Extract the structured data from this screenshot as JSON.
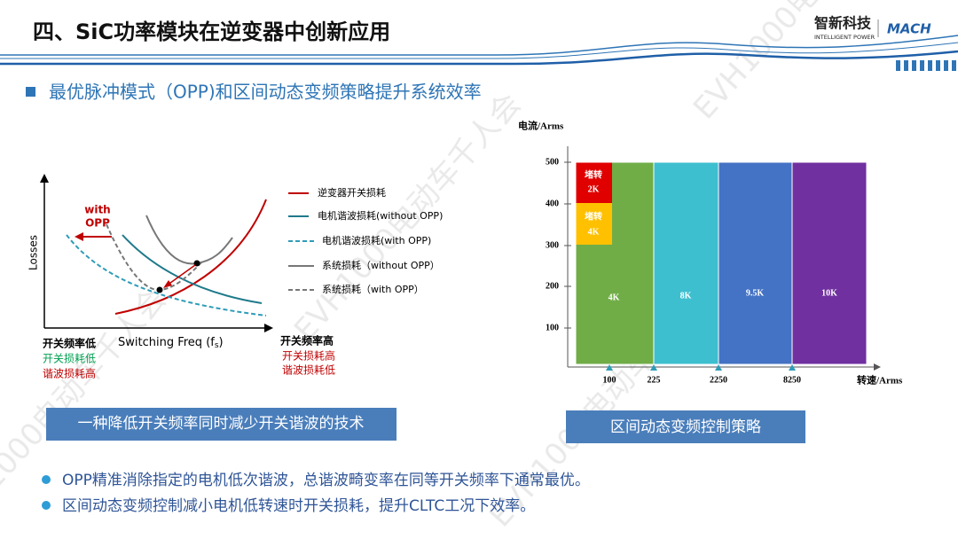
{
  "header": {
    "title": "四、SiC功率模块在逆变器中创新应用",
    "logo_cn": "智新科技",
    "logo_en": "INTELLIGENT POWER",
    "logo_brand": "MACH"
  },
  "subtitle": "最优脉冲模式（OPP)和区间动态变频策略提升系统效率",
  "left_diagram": {
    "y_label": "Losses",
    "x_label": {
      "main": "Switching Freq (f",
      "sub": "s",
      "end": ")"
    },
    "annotation": [
      "with",
      "OPP"
    ],
    "legend": [
      "逆变器开关损耗",
      "电机谐波损耗(without  OPP)",
      "电机谐波损耗(with OPP)",
      "系统损耗（without OPP）",
      "系统损耗（with OPP）"
    ],
    "low_side": [
      "开关频率低",
      "开关损耗低",
      "谐波损耗高"
    ],
    "high_side": [
      "开关频率高",
      "开关损耗高",
      "谐波损耗低"
    ],
    "caption": "一种降低开关频率同时减少开关谐波的技术"
  },
  "right_diagram": {
    "y_label": "电流/Arms",
    "y_ticks": [
      "500",
      "400",
      "300",
      "200",
      "100"
    ],
    "x_label": "转速/Arms",
    "x_ticks": [
      "100",
      "225",
      "2250",
      "8250"
    ],
    "regions": [
      [
        "堵转",
        "2K"
      ],
      [
        "堵转",
        "4K"
      ],
      [
        "4K"
      ],
      [
        "8K"
      ],
      [
        "9.5K"
      ],
      [
        "10K"
      ]
    ],
    "caption": "区间动态变频控制策略"
  },
  "bullets": [
    "OPP精准消除指定的电机低次谐波，总谐波畸变率在同等开关频率下通常最优。",
    "区间动态变频控制减小电机低转速时开关损耗，提升CLTC工况下效率。"
  ],
  "watermark": "EVH1000电动车千人会"
}
